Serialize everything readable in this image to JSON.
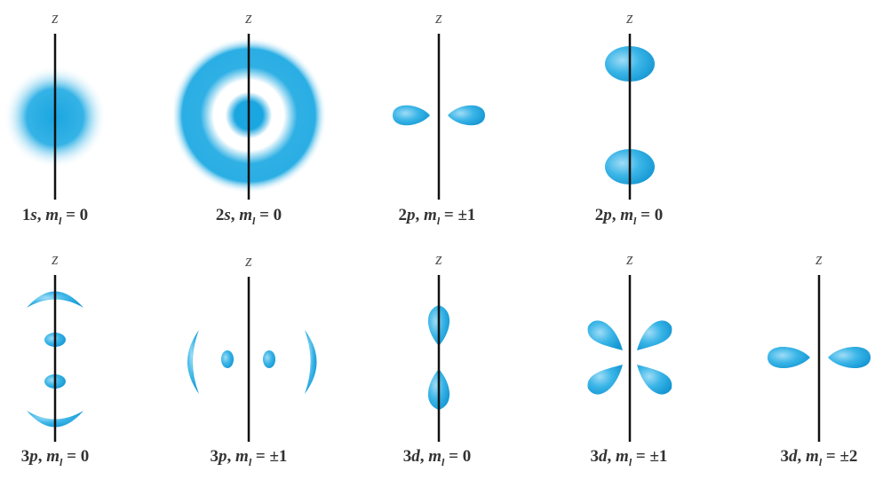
{
  "axis_label": "z",
  "orbitals": [
    {
      "n": "1",
      "l": "s",
      "ml": "0"
    },
    {
      "n": "2",
      "l": "s",
      "ml": "0"
    },
    {
      "n": "2",
      "l": "p",
      "ml": "±1"
    },
    {
      "n": "2",
      "l": "p",
      "ml": "0"
    },
    {
      "n": "3",
      "l": "p",
      "ml": "0"
    },
    {
      "n": "3",
      "l": "p",
      "ml": "±1"
    },
    {
      "n": "3",
      "l": "d",
      "ml": "0"
    },
    {
      "n": "3",
      "l": "d",
      "ml": "±1"
    },
    {
      "n": "3",
      "l": "d",
      "ml": "±2"
    }
  ],
  "colors": {
    "lobe": "#1aa6e0",
    "lobe_light": "#7fd0f2",
    "axis": "#111111"
  }
}
